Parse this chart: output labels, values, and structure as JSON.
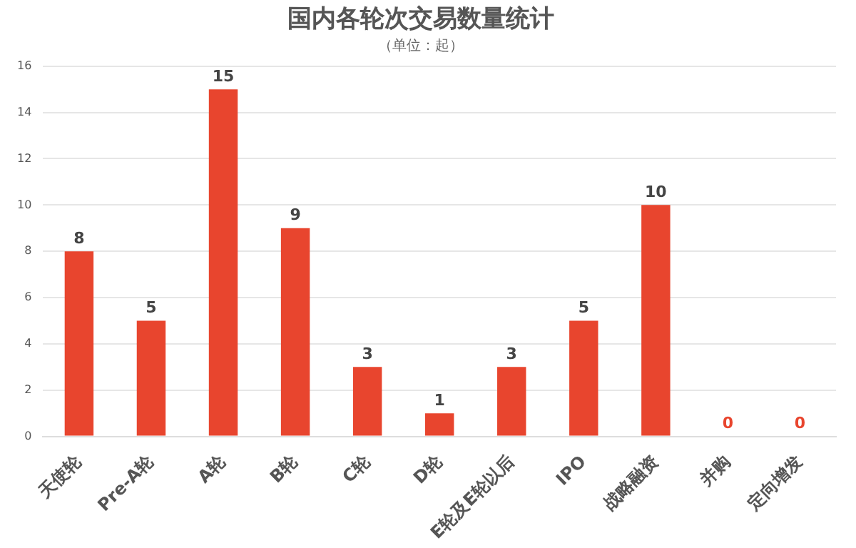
{
  "chart_data": {
    "type": "bar",
    "title": "国内各轮次交易数量统计",
    "subtitle": "（单位：起）",
    "categories": [
      "天使轮",
      "Pre-A轮",
      "A轮",
      "B轮",
      "C轮",
      "D轮",
      "E轮及E轮以后",
      "IPO",
      "战略融资",
      "并购",
      "定向增发"
    ],
    "values": [
      8,
      5,
      15,
      9,
      3,
      1,
      3,
      5,
      10,
      0,
      0
    ],
    "color": "#e8452e",
    "ylim": [
      0,
      16
    ],
    "yticks": [
      0,
      2,
      4,
      6,
      8,
      10,
      12,
      14,
      16
    ],
    "grid": "y",
    "data_labels": true,
    "legend": false
  }
}
